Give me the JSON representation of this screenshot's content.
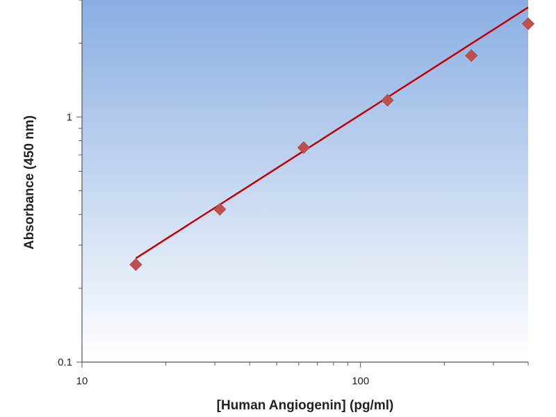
{
  "chart_data": {
    "type": "scatter",
    "xlabel": "[Human Angiogenin] (pg/ml)",
    "ylabel": "Absorbance (450 nm)",
    "x_scale": "log",
    "y_scale": "log",
    "xlim": [
      10,
      400
    ],
    "ylim": [
      0.1,
      3
    ],
    "x_tick_labels": [
      "10",
      "100"
    ],
    "y_tick_labels": [
      "0.1",
      "1"
    ],
    "grid": false,
    "legend": "none",
    "series": [
      {
        "marker": "diamond",
        "color": "#c0504d",
        "points": [
          {
            "x": 15.6,
            "y": 0.25
          },
          {
            "x": 31.25,
            "y": 0.42
          },
          {
            "x": 62.5,
            "y": 0.75
          },
          {
            "x": 125,
            "y": 1.17
          },
          {
            "x": 250,
            "y": 1.78
          },
          {
            "x": 400,
            "y": 2.4
          }
        ]
      }
    ],
    "trendline": {
      "type": "power",
      "color": "#c00000",
      "x_range": [
        15.6,
        400
      ],
      "y_range": [
        0.265,
        2.8
      ]
    },
    "colors": {
      "plot_gradient_top": "#8aaee2",
      "plot_gradient_bottom": "#ffffff"
    }
  }
}
